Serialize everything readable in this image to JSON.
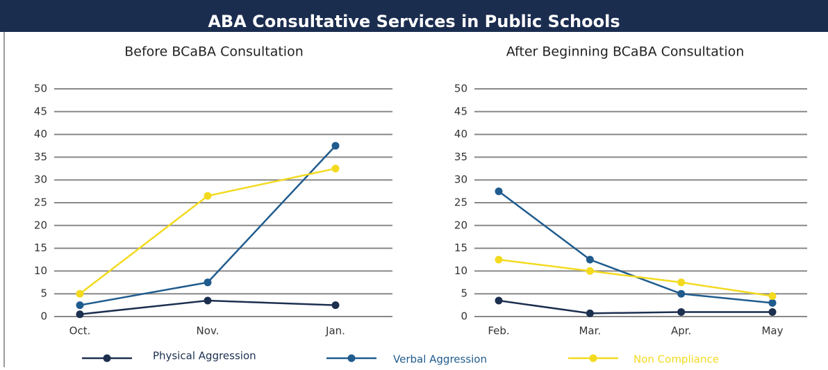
{
  "title": "ABA Consultative Services in Public Schools",
  "chart_data": [
    {
      "type": "line",
      "title": "Before BCaBA Consultation",
      "categories": [
        "Oct.",
        "Nov.",
        "Jan."
      ],
      "series": [
        {
          "name": "Physical Aggression",
          "color": "#1c2f4f",
          "values": [
            0.5,
            3.5,
            2.5
          ]
        },
        {
          "name": "Verbal Aggression",
          "color": "#1f5b8d",
          "values": [
            2.5,
            7.5,
            37.5
          ]
        },
        {
          "name": "Non Compliance",
          "color": "#f3da1f",
          "values": [
            5,
            26.5,
            32.5
          ]
        }
      ],
      "ylim": [
        0,
        50
      ],
      "yticks": [
        0,
        5,
        10,
        15,
        20,
        25,
        30,
        35,
        40,
        45,
        50
      ],
      "grid": true
    },
    {
      "type": "line",
      "title": "After Beginning BCaBA Consultation",
      "categories": [
        "Feb.",
        "Mar.",
        "Apr.",
        "May"
      ],
      "series": [
        {
          "color": "#1c2f4f",
          "values": [
            3.5,
            0.7,
            1,
            1
          ]
        },
        {
          "color": "#1f5b8d",
          "values": [
            27.5,
            12.5,
            5,
            3
          ]
        },
        {
          "color": "#f3da1f",
          "values": [
            12.5,
            10,
            7.5,
            4.5
          ]
        }
      ],
      "ylim": [
        0,
        50
      ],
      "yticks": [
        0,
        5,
        10,
        15,
        20,
        25,
        30,
        35,
        40,
        45,
        50
      ],
      "grid": true
    }
  ]
}
